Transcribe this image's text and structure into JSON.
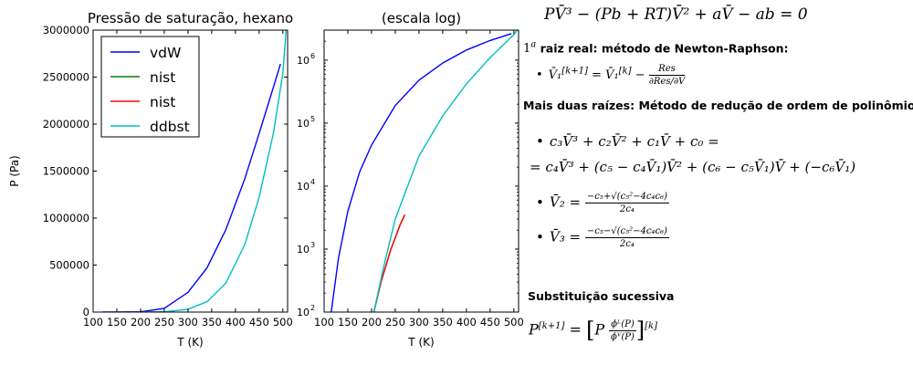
{
  "chart_data": [
    {
      "type": "line",
      "title": "Pressão de saturação, hexano",
      "xlabel": "T (K)",
      "ylabel": "P (Pa)",
      "xlim": [
        100,
        510
      ],
      "ylim": [
        0,
        3000000
      ],
      "xticks": [
        100,
        150,
        200,
        250,
        300,
        350,
        400,
        450,
        500
      ],
      "xtick_labels": [
        "100",
        "150",
        "200",
        "250",
        "300",
        "350",
        "400",
        "450",
        "500"
      ],
      "yticks": [
        0,
        500000,
        1000000,
        1500000,
        2000000,
        2500000,
        3000000
      ],
      "ytick_labels": [
        "0",
        "500000",
        "1000000",
        "1500000",
        "2000000",
        "2500000",
        "3000000"
      ],
      "yscale": "linear",
      "grid": false,
      "legend": "top-left",
      "series": [
        {
          "name": "vdW",
          "color": "#0000ff",
          "x": [
            120,
            150,
            200,
            250,
            300,
            340,
            380,
            420,
            450,
            480,
            495
          ],
          "y": [
            1,
            30,
            3000,
            40000,
            210000,
            470000,
            880000,
            1420000,
            1900000,
            2390000,
            2640000
          ]
        },
        {
          "name": "nist",
          "color": "#008000",
          "x": [
            205,
            220,
            240,
            260,
            270
          ],
          "y": [
            100,
            300,
            950,
            2400,
            3500
          ]
        },
        {
          "name": "nist",
          "color": "#ff0000",
          "x": [
            205,
            220,
            240,
            260,
            270
          ],
          "y": [
            100,
            300,
            950,
            2400,
            3500
          ]
        },
        {
          "name": "ddbst",
          "color": "#00bfbf",
          "x": [
            205,
            250,
            300,
            340,
            380,
            420,
            450,
            480,
            500,
            507
          ],
          "y": [
            100,
            3000,
            30000,
            110000,
            310000,
            720000,
            1220000,
            1900000,
            2540000,
            3000000
          ]
        }
      ]
    },
    {
      "type": "line",
      "title": "(escala log)",
      "xlabel": "T (K)",
      "ylabel": "",
      "xlim": [
        100,
        510
      ],
      "ylim": [
        100,
        3000000
      ],
      "xticks": [
        100,
        150,
        200,
        250,
        300,
        350,
        400,
        450,
        500
      ],
      "xtick_labels": [
        "100",
        "150",
        "200",
        "250",
        "300",
        "350",
        "400",
        "450",
        "500"
      ],
      "yticks": [
        100,
        1000,
        10000,
        100000,
        1000000
      ],
      "ytick_labels": [
        "10",
        "10",
        "10",
        "10",
        "10"
      ],
      "ytick_exponents": [
        "2",
        "3",
        "4",
        "5",
        "6"
      ],
      "yscale": "log",
      "grid": false,
      "series": [
        {
          "name": "vdW",
          "color": "#0000ff",
          "x": [
            115,
            130,
            150,
            175,
            200,
            250,
            300,
            350,
            400,
            450,
            495
          ],
          "y": [
            100,
            700,
            4000,
            17000,
            45000,
            190000,
            480000,
            900000,
            1450000,
            2050000,
            2640000
          ]
        },
        {
          "name": "nist",
          "color": "#008000",
          "x": [
            205,
            220,
            240,
            260,
            270
          ],
          "y": [
            100,
            300,
            950,
            2400,
            3500
          ]
        },
        {
          "name": "nist",
          "color": "#ff0000",
          "x": [
            205,
            220,
            240,
            260,
            270
          ],
          "y": [
            100,
            300,
            950,
            2400,
            3500
          ]
        },
        {
          "name": "ddbst",
          "color": "#00bfbf",
          "x": [
            205,
            225,
            250,
            300,
            350,
            400,
            450,
            500,
            507
          ],
          "y": [
            100,
            500,
            3000,
            30000,
            130000,
            420000,
            1100000,
            2540000,
            3000000
          ]
        }
      ]
    }
  ],
  "text": {
    "eq_main": "PV̄³ − (Pb + RT)V̄² + aV̄ − ab = 0",
    "sec1_prefix": "1",
    "sec1_sup": "a",
    "sec1_label": "raiz real: método de Newton-Raphson:",
    "eq_newton_lhs": "V̄₁",
    "eq_newton_sup": "[k+1]",
    "eq_newton_mid": "= V̄₁",
    "eq_newton_sup2": "[k]",
    "eq_newton_minus": "−",
    "eq_newton_num": "Res",
    "eq_newton_den": "∂Res/∂V̄",
    "sec2_label": "Mais duas raízes: Método de redução de ordem de polinômio:",
    "eq_poly1": "c₃V̄³ + c₂V̄² + c₁V̄ + c₀ =",
    "eq_poly2": "= c₄V̄³ + (c₅ − c₄V̄₁)V̄² + (c₆ − c₅V̄₁)V̄ + (−c₆V̄₁)",
    "eq_v2_lhs": "V̄₂ =",
    "eq_v2_num": "−c₅+√(c₅²−4c₄c₆)",
    "eq_v2_den": "2c₄",
    "eq_v3_lhs": "V̄₃ =",
    "eq_v3_num": "−c₅−√(c₅²−4c₄c₆)",
    "eq_v3_den": "2c₄",
    "sec3_label": "Substituição sucessiva",
    "eq_subst_lhs": "P",
    "eq_subst_sup": "[k+1]",
    "eq_subst_eq": "=",
    "eq_subst_p": "P",
    "eq_subst_num": "ϕᴸ(P)",
    "eq_subst_den": "ϕⱽ(P)",
    "eq_subst_sup2": "[k]",
    "bullet": "•"
  }
}
